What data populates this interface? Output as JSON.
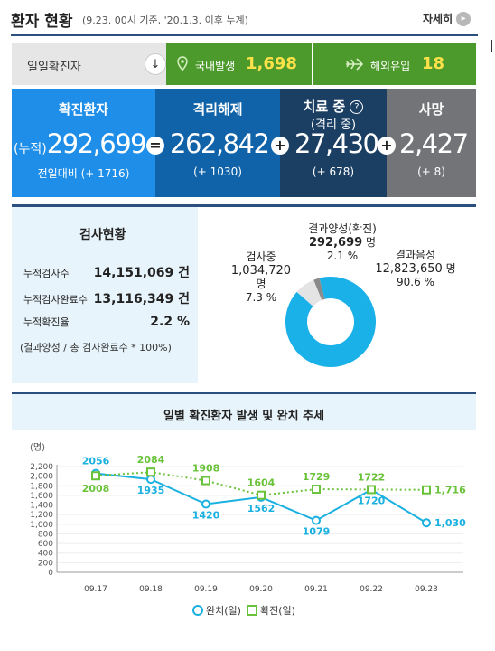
{
  "header": {
    "title": "환자 현황",
    "subtitle": "(9.23. 00시 기준, '20.1.3. 이후 누계)",
    "more_label": "자세히",
    "more_icon": "chevron-right-icon"
  },
  "daily": {
    "label": "일일확진자",
    "arrow_icon": "arrow-down-icon",
    "arrow_glyph": "↓",
    "domestic_label": "국내발생",
    "domestic_value": "1,698",
    "domestic_icon": "location-pin-icon",
    "imported_label": "해외유입",
    "imported_value": "18",
    "imported_icon": "airplane-icon",
    "colors": {
      "bar": "#4d9a2c",
      "value": "#ffe14a"
    }
  },
  "stats": {
    "confirmed": {
      "title": "확진환자",
      "prefix": "(누적)",
      "value": "292,699",
      "sub": "전일대비 (+ 1716)",
      "color": "#1e8ee8"
    },
    "released": {
      "title": "격리해제",
      "value": "262,842",
      "sub": "(+ 1030)",
      "color": "#1063a8"
    },
    "treatment": {
      "title": "치료 중",
      "title2": "(격리 중)",
      "help_icon": "question-icon",
      "help_glyph": "?",
      "value": "27,430",
      "sub": "(+ 678)",
      "color": "#1b3e63"
    },
    "deaths": {
      "title": "사망",
      "value": "2,427",
      "sub": "(+ 8)",
      "color": "#737478"
    },
    "ops": [
      "=",
      "+",
      "+"
    ]
  },
  "tests": {
    "title": "검사현황",
    "rows": [
      {
        "label": "누적검사수",
        "value": "14,151,069 건"
      },
      {
        "label": "누적검사완료수",
        "value": "13,116,349 건"
      },
      {
        "label": "누적확진율",
        "value": "2.2 %"
      }
    ],
    "note": "(결과양성 / 총 검사완료수 * 100%)",
    "donut": {
      "positive": {
        "label": "결과양성(확진)",
        "value": "292,699",
        "unit": "명",
        "pct": "2.1 %",
        "share": 2.1,
        "color": "#8a8a8a"
      },
      "testing": {
        "label": "검사중",
        "value": "1,034,720",
        "unit": "명",
        "pct": "7.3 %",
        "share": 7.3,
        "color": "#e4e4e4"
      },
      "negative": {
        "label": "결과음성",
        "value": "12,823,650",
        "unit": "명",
        "pct": "90.6 %",
        "share": 90.6,
        "color": "#1ab0e8"
      }
    }
  },
  "chart_data": {
    "type": "line",
    "title": "일별 확진환자 발생 및 완치 추세",
    "ylabel": "(명)",
    "ylim": [
      0,
      2200
    ],
    "yticks": [
      "0",
      "200",
      "400",
      "600",
      "800",
      "1,000",
      "1,200",
      "1,400",
      "1,600",
      "1,800",
      "2,000",
      "2,200"
    ],
    "categories": [
      "09.17",
      "09.18",
      "09.19",
      "09.20",
      "09.21",
      "09.22",
      "09.23"
    ],
    "grid": true,
    "legend_position": "bottom",
    "series": [
      {
        "name": "완치(일)",
        "values": [
          2056,
          1935,
          1420,
          1562,
          1079,
          1720,
          1030
        ],
        "labels": [
          "2056",
          "1935",
          "1420",
          "1562",
          "1079",
          "1720",
          "1,030"
        ],
        "color": "#1ab0e0",
        "style": "solid",
        "marker": "circle"
      },
      {
        "name": "확진(일)",
        "values": [
          2008,
          2084,
          1908,
          1604,
          1729,
          1722,
          1716
        ],
        "labels": [
          "2008",
          "2084",
          "1908",
          "1604",
          "1729",
          "1722",
          "1,716"
        ],
        "color": "#6ac23a",
        "style": "dotted",
        "marker": "square"
      }
    ]
  }
}
